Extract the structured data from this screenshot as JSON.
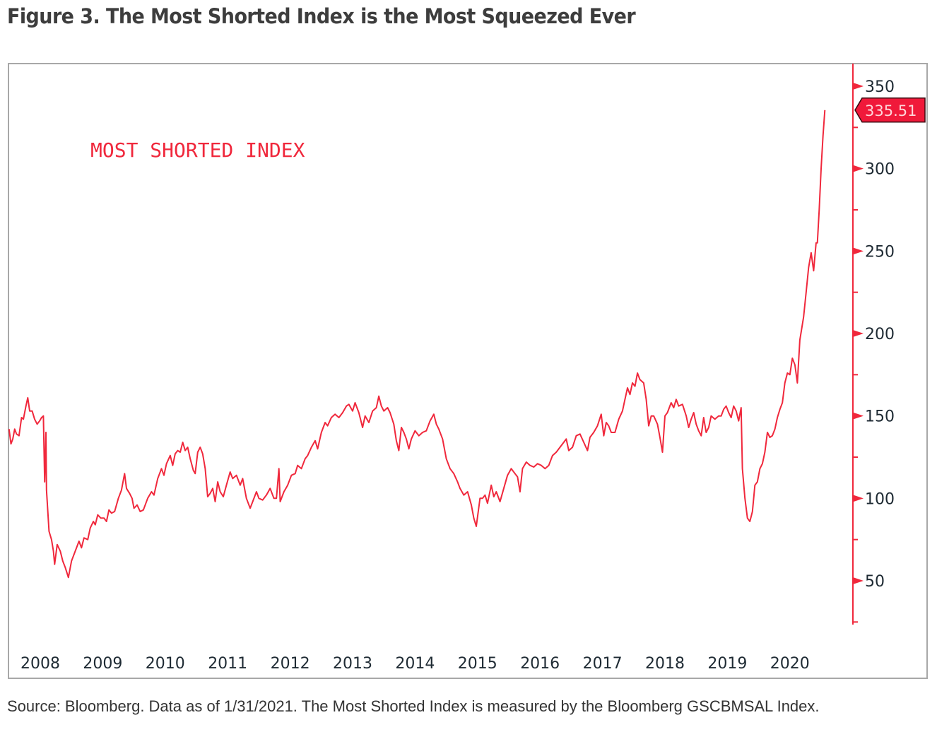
{
  "figure": {
    "title": "Figure 3. The Most Shorted Index is the Most Squeezed Ever",
    "caption": "Source: Bloomberg. Data as of 1/31/2021. The Most Shorted Index is measured by the Bloomberg GSCBMSAL Index."
  },
  "colors": {
    "line": "#f0283c",
    "axis": "#f0283c",
    "price_tag_bg": "#f0193a",
    "price_tag_border": "#3a0b10",
    "frame": "#a8a8a8",
    "text": "#1e2a33"
  },
  "chart_data": {
    "type": "line",
    "title": "Figure 3. The Most Shorted Index is the Most Squeezed Ever",
    "series_label": "MOST SHORTED INDEX",
    "xlabel": "",
    "ylabel": "",
    "x_tick_labels": [
      "2008",
      "2009",
      "2010",
      "2011",
      "2012",
      "2013",
      "2014",
      "2015",
      "2016",
      "2017",
      "2018",
      "2019",
      "2020"
    ],
    "xlim": [
      2008.0,
      2021.1
    ],
    "y_ticks": [
      50,
      100,
      150,
      200,
      250,
      300,
      350
    ],
    "y_minor_ticks": [
      25,
      75,
      125,
      175,
      225,
      275,
      325
    ],
    "ylim": [
      25,
      362
    ],
    "y_axis_side": "right",
    "grid": false,
    "last_value_label": "335.51",
    "last_value": 335.51,
    "series": [
      {
        "name": "MOST SHORTED INDEX",
        "points": [
          [
            2008.0,
            142
          ],
          [
            2008.03,
            133
          ],
          [
            2008.06,
            136
          ],
          [
            2008.09,
            142
          ],
          [
            2008.12,
            139
          ],
          [
            2008.16,
            138
          ],
          [
            2008.2,
            149
          ],
          [
            2008.23,
            148
          ],
          [
            2008.27,
            156
          ],
          [
            2008.3,
            161
          ],
          [
            2008.33,
            153
          ],
          [
            2008.37,
            153
          ],
          [
            2008.41,
            148
          ],
          [
            2008.45,
            145
          ],
          [
            2008.49,
            147
          ],
          [
            2008.52,
            149
          ],
          [
            2008.55,
            150
          ],
          [
            2008.57,
            110
          ],
          [
            2008.59,
            140
          ],
          [
            2008.6,
            105
          ],
          [
            2008.64,
            80
          ],
          [
            2008.68,
            75
          ],
          [
            2008.71,
            68
          ],
          [
            2008.73,
            60
          ],
          [
            2008.77,
            72
          ],
          [
            2008.82,
            68
          ],
          [
            2008.86,
            62
          ],
          [
            2008.9,
            58
          ],
          [
            2008.95,
            52
          ],
          [
            2009.0,
            62
          ],
          [
            2009.06,
            68
          ],
          [
            2009.12,
            74
          ],
          [
            2009.16,
            70
          ],
          [
            2009.2,
            76
          ],
          [
            2009.26,
            75
          ],
          [
            2009.3,
            82
          ],
          [
            2009.35,
            86
          ],
          [
            2009.38,
            84
          ],
          [
            2009.42,
            90
          ],
          [
            2009.47,
            88
          ],
          [
            2009.52,
            88
          ],
          [
            2009.56,
            86
          ],
          [
            2009.6,
            93
          ],
          [
            2009.64,
            91
          ],
          [
            2009.69,
            92
          ],
          [
            2009.75,
            100
          ],
          [
            2009.8,
            105
          ],
          [
            2009.85,
            115
          ],
          [
            2009.88,
            106
          ],
          [
            2009.93,
            103
          ],
          [
            2009.97,
            100
          ],
          [
            2010.0,
            94
          ],
          [
            2010.05,
            96
          ],
          [
            2010.1,
            92
          ],
          [
            2010.15,
            93
          ],
          [
            2010.22,
            100
          ],
          [
            2010.28,
            104
          ],
          [
            2010.32,
            102
          ],
          [
            2010.38,
            112
          ],
          [
            2010.44,
            118
          ],
          [
            2010.48,
            114
          ],
          [
            2010.52,
            121
          ],
          [
            2010.58,
            126
          ],
          [
            2010.62,
            120
          ],
          [
            2010.66,
            127
          ],
          [
            2010.7,
            129
          ],
          [
            2010.74,
            128
          ],
          [
            2010.78,
            134
          ],
          [
            2010.82,
            129
          ],
          [
            2010.86,
            131
          ],
          [
            2010.9,
            124
          ],
          [
            2010.95,
            117
          ],
          [
            2010.98,
            115
          ],
          [
            2011.02,
            128
          ],
          [
            2011.06,
            131
          ],
          [
            2011.1,
            127
          ],
          [
            2011.14,
            118
          ],
          [
            2011.18,
            101
          ],
          [
            2011.22,
            103
          ],
          [
            2011.26,
            106
          ],
          [
            2011.3,
            98
          ],
          [
            2011.34,
            110
          ],
          [
            2011.38,
            104
          ],
          [
            2011.43,
            101
          ],
          [
            2011.48,
            108
          ],
          [
            2011.54,
            116
          ],
          [
            2011.58,
            112
          ],
          [
            2011.64,
            114
          ],
          [
            2011.7,
            108
          ],
          [
            2011.74,
            112
          ],
          [
            2011.8,
            100
          ],
          [
            2011.86,
            94
          ],
          [
            2011.9,
            98
          ],
          [
            2011.96,
            104
          ],
          [
            2012.0,
            100
          ],
          [
            2012.06,
            99
          ],
          [
            2012.12,
            102
          ],
          [
            2012.18,
            106
          ],
          [
            2012.24,
            100
          ],
          [
            2012.28,
            100
          ],
          [
            2012.32,
            118
          ],
          [
            2012.34,
            98
          ],
          [
            2012.4,
            104
          ],
          [
            2012.46,
            108
          ],
          [
            2012.52,
            114
          ],
          [
            2012.58,
            115
          ],
          [
            2012.62,
            120
          ],
          [
            2012.68,
            118
          ],
          [
            2012.74,
            124
          ],
          [
            2012.78,
            126
          ],
          [
            2012.84,
            131
          ],
          [
            2012.9,
            135
          ],
          [
            2012.94,
            130
          ],
          [
            2013.0,
            140
          ],
          [
            2013.06,
            146
          ],
          [
            2013.1,
            144
          ],
          [
            2013.16,
            149
          ],
          [
            2013.22,
            151
          ],
          [
            2013.28,
            149
          ],
          [
            2013.34,
            152
          ],
          [
            2013.4,
            156
          ],
          [
            2013.44,
            157
          ],
          [
            2013.5,
            153
          ],
          [
            2013.54,
            158
          ],
          [
            2013.6,
            152
          ],
          [
            2013.66,
            143
          ],
          [
            2013.7,
            150
          ],
          [
            2013.76,
            146
          ],
          [
            2013.82,
            153
          ],
          [
            2013.88,
            155
          ],
          [
            2013.92,
            162
          ],
          [
            2013.96,
            156
          ],
          [
            2014.0,
            153
          ],
          [
            2014.06,
            155
          ],
          [
            2014.1,
            152
          ],
          [
            2014.16,
            145
          ],
          [
            2014.2,
            135
          ],
          [
            2014.24,
            129
          ],
          [
            2014.28,
            143
          ],
          [
            2014.32,
            140
          ],
          [
            2014.36,
            136
          ],
          [
            2014.4,
            130
          ],
          [
            2014.44,
            136
          ],
          [
            2014.5,
            141
          ],
          [
            2014.56,
            138
          ],
          [
            2014.62,
            140
          ],
          [
            2014.68,
            141
          ],
          [
            2014.74,
            147
          ],
          [
            2014.8,
            151
          ],
          [
            2014.84,
            145
          ],
          [
            2014.88,
            142
          ],
          [
            2014.94,
            136
          ],
          [
            2015.0,
            124
          ],
          [
            2015.06,
            118
          ],
          [
            2015.12,
            115
          ],
          [
            2015.18,
            110
          ],
          [
            2015.22,
            106
          ],
          [
            2015.28,
            102
          ],
          [
            2015.34,
            104
          ],
          [
            2015.4,
            96
          ],
          [
            2015.44,
            88
          ],
          [
            2015.48,
            83
          ],
          [
            2015.54,
            100
          ],
          [
            2015.58,
            100
          ],
          [
            2015.62,
            102
          ],
          [
            2015.66,
            97
          ],
          [
            2015.72,
            108
          ],
          [
            2015.76,
            101
          ],
          [
            2015.8,
            104
          ],
          [
            2015.86,
            98
          ],
          [
            2015.92,
            106
          ],
          [
            2015.98,
            114
          ],
          [
            2016.04,
            118
          ],
          [
            2016.1,
            115
          ],
          [
            2016.14,
            113
          ],
          [
            2016.18,
            104
          ],
          [
            2016.22,
            118
          ],
          [
            2016.28,
            122
          ],
          [
            2016.34,
            120
          ],
          [
            2016.4,
            119
          ],
          [
            2016.46,
            121
          ],
          [
            2016.52,
            120
          ],
          [
            2016.58,
            118
          ],
          [
            2016.64,
            120
          ],
          [
            2016.7,
            126
          ],
          [
            2016.76,
            128
          ],
          [
            2016.82,
            131
          ],
          [
            2016.88,
            134
          ],
          [
            2016.92,
            136
          ],
          [
            2016.96,
            129
          ],
          [
            2017.02,
            131
          ],
          [
            2017.08,
            138
          ],
          [
            2017.14,
            139
          ],
          [
            2017.2,
            134
          ],
          [
            2017.26,
            129
          ],
          [
            2017.3,
            137
          ],
          [
            2017.36,
            140
          ],
          [
            2017.42,
            144
          ],
          [
            2017.48,
            151
          ],
          [
            2017.52,
            138
          ],
          [
            2017.56,
            146
          ],
          [
            2017.6,
            144
          ],
          [
            2017.64,
            140
          ],
          [
            2017.7,
            140
          ],
          [
            2017.76,
            148
          ],
          [
            2017.82,
            153
          ],
          [
            2017.86,
            160
          ],
          [
            2017.9,
            167
          ],
          [
            2017.94,
            163
          ],
          [
            2017.98,
            170
          ],
          [
            2018.02,
            168
          ],
          [
            2018.06,
            176
          ],
          [
            2018.1,
            172
          ],
          [
            2018.16,
            170
          ],
          [
            2018.2,
            160
          ],
          [
            2018.24,
            144
          ],
          [
            2018.28,
            150
          ],
          [
            2018.32,
            150
          ],
          [
            2018.38,
            145
          ],
          [
            2018.42,
            137
          ],
          [
            2018.46,
            128
          ],
          [
            2018.5,
            150
          ],
          [
            2018.54,
            152
          ],
          [
            2018.6,
            158
          ],
          [
            2018.64,
            155
          ],
          [
            2018.68,
            160
          ],
          [
            2018.72,
            156
          ],
          [
            2018.78,
            157
          ],
          [
            2018.84,
            150
          ],
          [
            2018.88,
            143
          ],
          [
            2018.92,
            148
          ],
          [
            2018.96,
            152
          ],
          [
            2019.0,
            145
          ],
          [
            2019.04,
            141
          ],
          [
            2019.08,
            138
          ],
          [
            2019.12,
            149
          ],
          [
            2019.16,
            140
          ],
          [
            2019.2,
            143
          ],
          [
            2019.24,
            150
          ],
          [
            2019.3,
            148
          ],
          [
            2019.36,
            150
          ],
          [
            2019.4,
            150
          ],
          [
            2019.44,
            154
          ],
          [
            2019.48,
            156
          ],
          [
            2019.52,
            152
          ],
          [
            2019.56,
            149
          ],
          [
            2019.6,
            156
          ],
          [
            2019.64,
            153
          ],
          [
            2019.68,
            147
          ],
          [
            2019.72,
            155
          ],
          [
            2019.74,
            118
          ],
          [
            2019.78,
            100
          ],
          [
            2019.82,
            88
          ],
          [
            2019.86,
            86
          ],
          [
            2019.9,
            92
          ],
          [
            2019.94,
            108
          ],
          [
            2019.98,
            110
          ],
          [
            2020.02,
            118
          ],
          [
            2020.06,
            121
          ],
          [
            2020.1,
            128
          ],
          [
            2020.14,
            140
          ],
          [
            2020.18,
            137
          ],
          [
            2020.22,
            138
          ],
          [
            2020.26,
            142
          ],
          [
            2020.3,
            149
          ],
          [
            2020.34,
            154
          ],
          [
            2020.38,
            158
          ],
          [
            2020.42,
            170
          ],
          [
            2020.46,
            176
          ],
          [
            2020.5,
            175
          ],
          [
            2020.54,
            185
          ],
          [
            2020.58,
            181
          ],
          [
            2020.62,
            170
          ],
          [
            2020.66,
            196
          ],
          [
            2020.72,
            210
          ],
          [
            2020.76,
            225
          ],
          [
            2020.8,
            240
          ],
          [
            2020.84,
            249
          ],
          [
            2020.88,
            238
          ],
          [
            2020.92,
            255
          ],
          [
            2020.94,
            255
          ],
          [
            2020.97,
            275
          ],
          [
            2021.0,
            300
          ],
          [
            2021.03,
            320
          ],
          [
            2021.06,
            335.51
          ]
        ]
      }
    ]
  }
}
